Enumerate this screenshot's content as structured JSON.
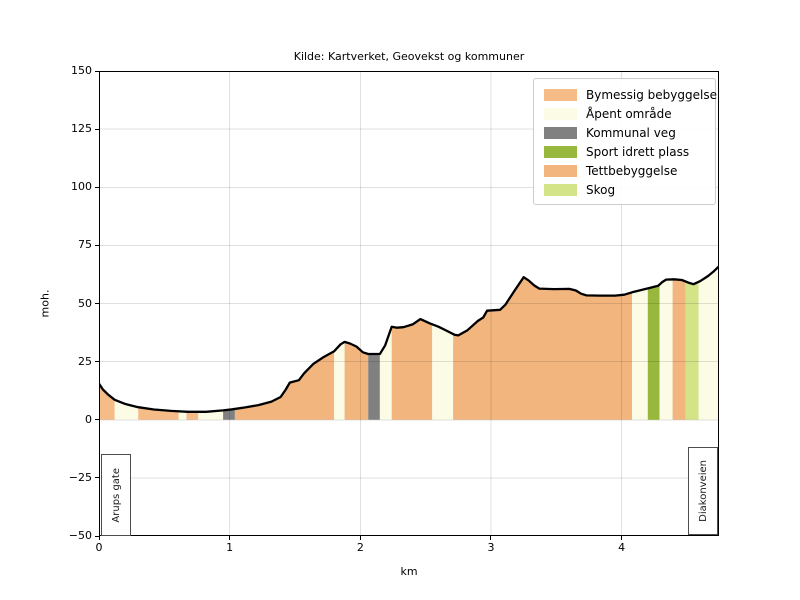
{
  "title": "Kilde: Kartverket, Geovekst og kommuner",
  "legend": [
    {
      "label": "Bymessig bebyggelse",
      "color": "#f5bc88"
    },
    {
      "label": "Åpent område",
      "color": "#fcfce6"
    },
    {
      "label": "Kommunal veg",
      "color": "#808080"
    },
    {
      "label": "Sport idrett plass",
      "color": "#98b83d"
    },
    {
      "label": "Tettbebyggelse",
      "color": "#f3b57e"
    },
    {
      "label": "Skog",
      "color": "#d2e388"
    }
  ],
  "chart_data": {
    "type": "area",
    "title": "Kilde: Kartverket, Geovekst og kommuner",
    "xlabel": "km",
    "ylabel": "moh.",
    "xlim": [
      0,
      4.745
    ],
    "ylim": [
      -50,
      150
    ],
    "xticks": [
      0,
      1,
      2,
      3,
      4
    ],
    "yticks": [
      -50,
      -25,
      0,
      25,
      50,
      75,
      100,
      125,
      150
    ],
    "grid": true,
    "legend_position": "upper right",
    "line_color": "#000000",
    "profile_km_m": [
      [
        0.0,
        15.5
      ],
      [
        0.03,
        13.0
      ],
      [
        0.07,
        10.8
      ],
      [
        0.12,
        8.6
      ],
      [
        0.2,
        6.8
      ],
      [
        0.3,
        5.4
      ],
      [
        0.42,
        4.4
      ],
      [
        0.55,
        3.8
      ],
      [
        0.68,
        3.4
      ],
      [
        0.82,
        3.4
      ],
      [
        0.95,
        4.0
      ],
      [
        1.02,
        4.5
      ],
      [
        1.12,
        5.3
      ],
      [
        1.22,
        6.3
      ],
      [
        1.32,
        7.8
      ],
      [
        1.39,
        9.8
      ],
      [
        1.43,
        13.0
      ],
      [
        1.46,
        16.0
      ],
      [
        1.53,
        17.0
      ],
      [
        1.57,
        20.0
      ],
      [
        1.64,
        24.0
      ],
      [
        1.72,
        27.0
      ],
      [
        1.8,
        29.5
      ],
      [
        1.85,
        32.5
      ],
      [
        1.88,
        33.5
      ],
      [
        1.92,
        32.8
      ],
      [
        1.97,
        31.5
      ],
      [
        2.02,
        29.0
      ],
      [
        2.06,
        28.3
      ],
      [
        2.15,
        28.3
      ],
      [
        2.19,
        32.0
      ],
      [
        2.24,
        40.0
      ],
      [
        2.28,
        39.6
      ],
      [
        2.33,
        39.8
      ],
      [
        2.4,
        41.0
      ],
      [
        2.46,
        43.3
      ],
      [
        2.53,
        41.5
      ],
      [
        2.6,
        40.0
      ],
      [
        2.67,
        38.0
      ],
      [
        2.72,
        36.6
      ],
      [
        2.75,
        36.3
      ],
      [
        2.82,
        38.5
      ],
      [
        2.9,
        42.5
      ],
      [
        2.94,
        44.0
      ],
      [
        2.97,
        46.9
      ],
      [
        3.07,
        47.3
      ],
      [
        3.11,
        49.5
      ],
      [
        3.18,
        55.5
      ],
      [
        3.25,
        61.3
      ],
      [
        3.29,
        59.8
      ],
      [
        3.33,
        57.8
      ],
      [
        3.37,
        56.4
      ],
      [
        3.48,
        56.2
      ],
      [
        3.6,
        56.3
      ],
      [
        3.65,
        55.6
      ],
      [
        3.69,
        54.2
      ],
      [
        3.73,
        53.5
      ],
      [
        3.83,
        53.4
      ],
      [
        3.95,
        53.4
      ],
      [
        4.02,
        53.8
      ],
      [
        4.08,
        54.8
      ],
      [
        4.15,
        55.8
      ],
      [
        4.22,
        56.8
      ],
      [
        4.28,
        57.6
      ],
      [
        4.31,
        59.2
      ],
      [
        4.34,
        60.3
      ],
      [
        4.4,
        60.4
      ],
      [
        4.46,
        60.1
      ],
      [
        4.51,
        59.0
      ],
      [
        4.55,
        58.3
      ],
      [
        4.6,
        59.6
      ],
      [
        4.66,
        61.8
      ],
      [
        4.7,
        63.6
      ],
      [
        4.745,
        66.0
      ]
    ],
    "bands": [
      {
        "from": 0.0,
        "to": 0.12,
        "category": "Bymessig bebyggelse"
      },
      {
        "from": 0.12,
        "to": 0.3,
        "category": "Åpent område"
      },
      {
        "from": 0.3,
        "to": 0.61,
        "category": "Bymessig bebyggelse"
      },
      {
        "from": 0.61,
        "to": 0.67,
        "category": "Åpent område"
      },
      {
        "from": 0.67,
        "to": 0.76,
        "category": "Bymessig bebyggelse"
      },
      {
        "from": 0.76,
        "to": 0.95,
        "category": "Åpent område"
      },
      {
        "from": 0.95,
        "to": 1.04,
        "category": "Kommunal veg"
      },
      {
        "from": 1.04,
        "to": 1.8,
        "category": "Tettbebyggelse"
      },
      {
        "from": 1.8,
        "to": 1.88,
        "category": "Åpent område"
      },
      {
        "from": 1.88,
        "to": 2.06,
        "category": "Tettbebyggelse"
      },
      {
        "from": 2.06,
        "to": 2.15,
        "category": "Kommunal veg"
      },
      {
        "from": 2.15,
        "to": 2.24,
        "category": "Åpent område"
      },
      {
        "from": 2.24,
        "to": 2.55,
        "category": "Tettbebyggelse"
      },
      {
        "from": 2.55,
        "to": 2.71,
        "category": "Åpent område"
      },
      {
        "from": 2.71,
        "to": 4.08,
        "category": "Tettbebyggelse"
      },
      {
        "from": 4.08,
        "to": 4.2,
        "category": "Åpent område"
      },
      {
        "from": 4.2,
        "to": 4.29,
        "category": "Sport idrett plass"
      },
      {
        "from": 4.29,
        "to": 4.39,
        "category": "Åpent område"
      },
      {
        "from": 4.39,
        "to": 4.49,
        "category": "Tettbebyggelse"
      },
      {
        "from": 4.49,
        "to": 4.59,
        "category": "Skog"
      },
      {
        "from": 4.59,
        "to": 4.745,
        "category": "Åpent område"
      }
    ],
    "categories": {
      "Bymessig bebyggelse": "#f5bc88",
      "Åpent område": "#fcfce6",
      "Kommunal veg": "#808080",
      "Sport idrett plass": "#98b83d",
      "Tettbebyggelse": "#f3b57e",
      "Skog": "#d2e388"
    },
    "annotations": [
      {
        "label": "Arups gate",
        "x": 0
      },
      {
        "label": "Diakonveien",
        "x": 4.745
      }
    ]
  }
}
